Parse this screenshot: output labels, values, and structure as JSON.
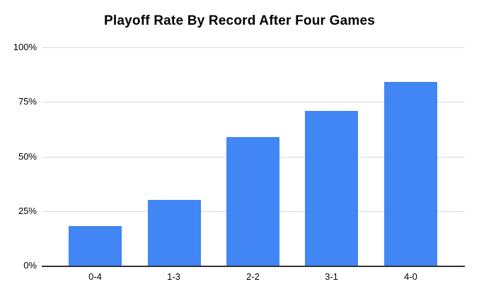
{
  "chart_data": {
    "type": "bar",
    "title": "Playoff Rate By Record After Four Games",
    "categories": [
      "0-4",
      "1-3",
      "2-2",
      "3-1",
      "4-0"
    ],
    "values": [
      18,
      30,
      59,
      71,
      84
    ],
    "xlabel": "",
    "ylabel": "",
    "ylim": [
      0,
      100
    ],
    "yticks": [
      0,
      25,
      50,
      75,
      100
    ],
    "ytick_suffix": "%",
    "grid": true,
    "legend": false,
    "colors": {
      "bar": "#4285f4",
      "gridline": "#d9d9d9",
      "axis_line": "#333333",
      "text": "#000000",
      "background": "#ffffff"
    }
  }
}
